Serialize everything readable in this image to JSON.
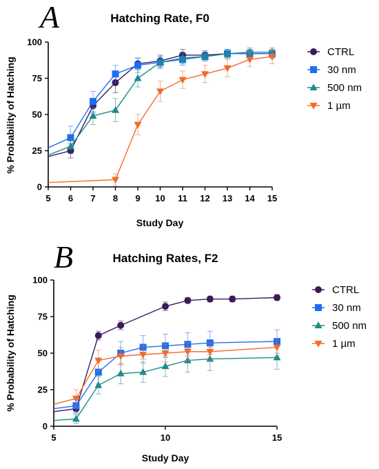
{
  "chart_data": [
    {
      "type": "line",
      "panel": "A",
      "title": "Hatching Rate, F0",
      "xlabel": "Study Day",
      "ylabel": "% Probability of Hatching",
      "xlim": [
        5,
        15
      ],
      "ylim": [
        0,
        100
      ],
      "xticks": [
        5,
        6,
        7,
        8,
        9,
        10,
        11,
        12,
        13,
        14,
        15
      ],
      "yticks": [
        0,
        25,
        50,
        75,
        100
      ],
      "legend_position": "right",
      "series": [
        {
          "name": "CTRL",
          "color": "#3b1a5a",
          "marker": "circle",
          "x": [
            5,
            6,
            7,
            8,
            9,
            10,
            11,
            12,
            13,
            14,
            15
          ],
          "y": [
            21,
            25,
            56,
            72,
            85,
            87,
            91,
            91,
            92,
            92,
            92
          ],
          "err": [
            null,
            5,
            5,
            7,
            4,
            4,
            4,
            3,
            3,
            3,
            3
          ]
        },
        {
          "name": "30 nm",
          "color": "#1f6ef0",
          "marker": "square",
          "x": [
            5,
            6,
            7,
            8,
            9,
            10,
            11,
            12,
            13,
            14,
            15
          ],
          "y": [
            27,
            34,
            59,
            78,
            84,
            86,
            88,
            90,
            92,
            92,
            92
          ],
          "err": [
            null,
            8,
            7,
            6,
            5,
            4,
            4,
            3,
            3,
            3,
            3
          ]
        },
        {
          "name": "500 nm",
          "color": "#1f8a8c",
          "marker": "triangle",
          "x": [
            5,
            6,
            7,
            8,
            9,
            10,
            11,
            12,
            13,
            14,
            15
          ],
          "y": [
            22,
            28,
            49,
            53,
            75,
            86,
            89,
            90,
            92,
            93,
            93
          ],
          "err": [
            null,
            5,
            6,
            8,
            6,
            4,
            4,
            3,
            3,
            3,
            3
          ]
        },
        {
          "name": "1 µm",
          "color": "#f26b2a",
          "marker": "triangle-down",
          "x": [
            5,
            8,
            9,
            10,
            11,
            12,
            13,
            14,
            15
          ],
          "y": [
            3,
            5,
            43,
            66,
            74,
            78,
            82,
            88,
            90
          ],
          "err": [
            null,
            4,
            7,
            7,
            6,
            6,
            6,
            5,
            5
          ]
        }
      ]
    },
    {
      "type": "line",
      "panel": "B",
      "title": "Hatching Rates, F2",
      "xlabel": "Study Day",
      "ylabel": "% Probability of Hatching",
      "xlim": [
        5,
        15
      ],
      "ylim": [
        0,
        100
      ],
      "xticks": [
        5,
        10,
        15
      ],
      "yticks": [
        0,
        25,
        50,
        75,
        100
      ],
      "legend_position": "right",
      "series": [
        {
          "name": "CTRL",
          "color": "#3b1a5a",
          "marker": "circle",
          "x": [
            5,
            6,
            7,
            8,
            10,
            11,
            12,
            13,
            15
          ],
          "y": [
            10,
            12,
            62,
            69,
            82,
            86,
            87,
            87,
            88
          ],
          "err": [
            null,
            3,
            3,
            3,
            3,
            2,
            2,
            2,
            2
          ]
        },
        {
          "name": "30 nm",
          "color": "#1f6ef0",
          "marker": "square",
          "x": [
            5,
            6,
            7,
            8,
            9,
            10,
            11,
            12,
            15
          ],
          "y": [
            12,
            14,
            37,
            50,
            54,
            55,
            56,
            57,
            58
          ],
          "err": [
            null,
            4,
            8,
            8,
            8,
            8,
            8,
            8,
            8
          ]
        },
        {
          "name": "500 nm",
          "color": "#1f8a8c",
          "marker": "triangle",
          "x": [
            5,
            6,
            7,
            8,
            9,
            10,
            11,
            12,
            15
          ],
          "y": [
            4,
            5,
            28,
            36,
            37,
            41,
            45,
            46,
            47
          ],
          "err": [
            null,
            3,
            6,
            7,
            7,
            7,
            8,
            8,
            8
          ]
        },
        {
          "name": "1 µm",
          "color": "#f26b2a",
          "marker": "triangle-down",
          "x": [
            5,
            6,
            7,
            8,
            9,
            10,
            11,
            12,
            15
          ],
          "y": [
            15,
            19,
            45,
            48,
            49,
            50,
            51,
            51,
            54
          ],
          "err": [
            null,
            6,
            7,
            6,
            6,
            6,
            6,
            6,
            6
          ]
        }
      ]
    }
  ]
}
